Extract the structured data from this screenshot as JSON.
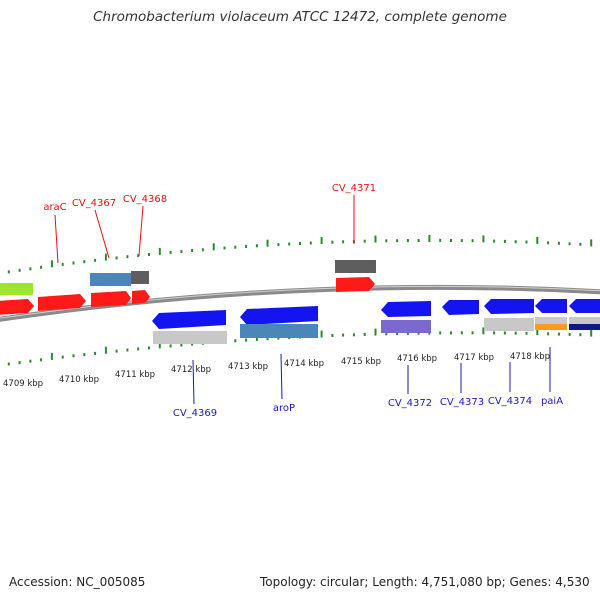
{
  "title": "Chromobacterium violaceum ATCC 12472, complete genome",
  "footer": {
    "accession": "Accession: NC_005085",
    "summary": "Topology: circular; Length: 4,751,080 bp; Genes: 4,530"
  },
  "colors": {
    "forward_label": "#e81010",
    "reverse_label": "#1a1ab8",
    "tick": "#2a8a2a",
    "backbone": "#8a8a8a",
    "cds_forward": "#ff1a1a",
    "cds_reverse": "#1414f0",
    "gene_steelblue": "#4a86b8",
    "gene_gray": "#c8c8c8",
    "gene_darkgray": "#5e5e5e",
    "gene_purple": "#7a6ad0",
    "gene_orange": "#ff9a1a",
    "gene_navy": "#101888",
    "gene_green": "#9ae630"
  },
  "scale": {
    "labels": [
      "4709 kbp",
      "4710 kbp",
      "4711 kbp",
      "4712 kbp",
      "4713 kbp",
      "4714 kbp",
      "4715 kbp",
      "4716 kbp",
      "4717 kbp",
      "4718 kbp"
    ]
  },
  "genes": {
    "forward": [
      "araC",
      "CV_4367",
      "CV_4368",
      "CV_4371"
    ],
    "reverse": [
      "CV_4369",
      "aroP",
      "CV_4372",
      "CV_4373",
      "CV_4374",
      "paiA"
    ]
  }
}
